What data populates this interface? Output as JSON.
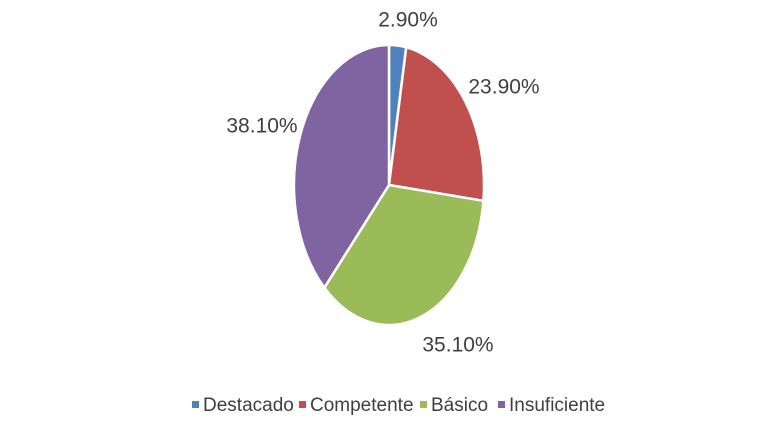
{
  "chart_data": {
    "type": "pie",
    "categories": [
      "Destacado",
      "Competente",
      "Básico",
      "Insuficiente"
    ],
    "values": [
      2.9,
      23.9,
      35.1,
      38.1
    ],
    "value_labels": [
      "2.90%",
      "23.90%",
      "35.10%",
      "38.10%"
    ],
    "colors": [
      "#4f81bd",
      "#c0504d",
      "#9bbb59",
      "#8064a2"
    ],
    "start_angle": "12 o'clock",
    "direction": "clockwise",
    "legend": {
      "placement": "bottom",
      "entries": [
        "Destacado",
        "Competente",
        "Básico",
        "Insuficiente"
      ]
    },
    "title": ""
  }
}
